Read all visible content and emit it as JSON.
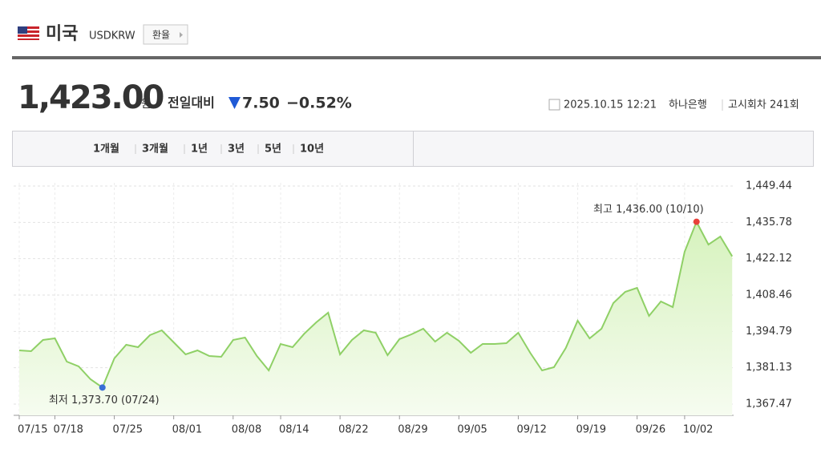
{
  "header": {
    "country": "미국",
    "code": "USDKRW",
    "button": "환율"
  },
  "quote": {
    "price": "1,423.00",
    "unit": "원",
    "change_label": "전일대비",
    "change": "7.50",
    "change_pct": "−0.52%",
    "datetime": "2025.10.15 12:21",
    "bank": "하나은행",
    "round": "고시회차 241회"
  },
  "tabs": [
    "1개월",
    "3개월",
    "1년",
    "3년",
    "5년",
    "10년"
  ],
  "chart_data": {
    "type": "area",
    "categories": [
      "07/15",
      null,
      null,
      "07/18",
      null,
      null,
      null,
      null,
      "07/25",
      null,
      null,
      null,
      null,
      "08/01",
      null,
      null,
      null,
      null,
      "08/08",
      null,
      null,
      null,
      "08/14",
      null,
      null,
      null,
      null,
      "08/22",
      null,
      null,
      null,
      null,
      "08/29",
      null,
      null,
      null,
      null,
      "09/05",
      null,
      null,
      null,
      null,
      "09/12",
      null,
      null,
      null,
      null,
      "09/19",
      null,
      null,
      null,
      null,
      "09/26",
      null,
      null,
      null,
      "10/02",
      null,
      null,
      null,
      null
    ],
    "values": [
      1387.66,
      1387.36,
      1391.58,
      1392.18,
      1383.44,
      1381.63,
      1376.81,
      1373.7,
      1384.65,
      1389.77,
      1388.87,
      1393.39,
      1395.2,
      1390.67,
      1386.15,
      1387.66,
      1385.55,
      1385.25,
      1391.58,
      1392.48,
      1385.55,
      1380.13,
      1390.07,
      1388.87,
      1393.99,
      1398.21,
      1401.83,
      1386.15,
      1391.58,
      1395.2,
      1394.29,
      1385.85,
      1391.88,
      1393.69,
      1395.8,
      1390.98,
      1394.29,
      1391.28,
      1386.76,
      1390.07,
      1390.07,
      1390.37,
      1394.29,
      1386.76,
      1380.13,
      1381.33,
      1388.57,
      1398.81,
      1392.18,
      1395.8,
      1405.44,
      1409.66,
      1411.17,
      1400.62,
      1406.04,
      1403.93,
      1424.73,
      1436.0,
      1427.44,
      1430.45,
      1423.0
    ],
    "color": "#8fd066",
    "area_color": "#e6f7d6",
    "high_label": "최고 1,436.00 (10/10)",
    "high_color": "#e8413a",
    "low_label": "최저 1,373.70 (07/24)",
    "low_color": "#3a6fd6",
    "ylim": [
      1363.25,
      1449.44
    ],
    "yticks": [
      {
        "value": 1449.44,
        "label": "1,449.44"
      },
      {
        "value": 1435.78,
        "label": "1,435.78"
      },
      {
        "value": 1422.12,
        "label": "1,422.12"
      },
      {
        "value": 1408.46,
        "label": "1,408.46"
      },
      {
        "value": 1394.79,
        "label": "1,394.79"
      },
      {
        "value": 1381.13,
        "label": "1,381.13"
      },
      {
        "value": 1367.47,
        "label": "1,367.47"
      }
    ],
    "grid": true
  }
}
